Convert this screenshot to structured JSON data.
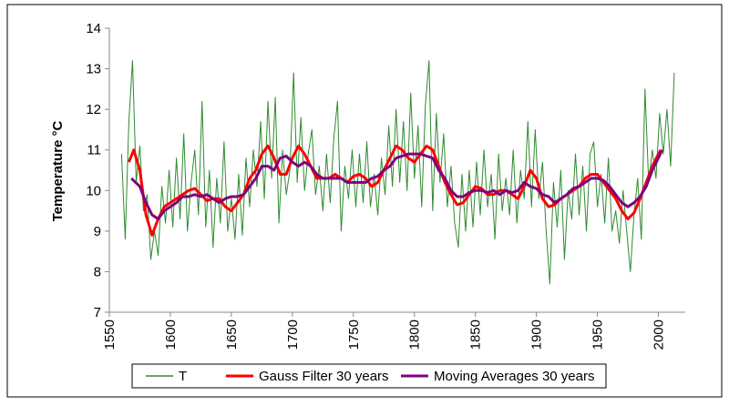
{
  "chart_data": {
    "type": "line",
    "ylabel": "Temperature °C",
    "xlim": [
      1550,
      2022
    ],
    "xticks": [
      1550,
      1600,
      1650,
      1700,
      1750,
      1800,
      1850,
      1900,
      1950,
      2000
    ],
    "ylim": [
      7,
      14
    ],
    "yticks": [
      7,
      8,
      9,
      10,
      11,
      12,
      13,
      14
    ],
    "grid": false,
    "legend": "bottom",
    "series": [
      {
        "name": "T",
        "color": "#2e8b2e",
        "width": 1,
        "x": [
          1560,
          1563,
          1566,
          1569,
          1572,
          1575,
          1578,
          1581,
          1584,
          1587,
          1590,
          1593,
          1596,
          1599,
          1602,
          1605,
          1608,
          1611,
          1614,
          1617,
          1620,
          1623,
          1626,
          1629,
          1632,
          1635,
          1638,
          1641,
          1644,
          1647,
          1650,
          1653,
          1656,
          1659,
          1662,
          1665,
          1668,
          1671,
          1674,
          1677,
          1680,
          1683,
          1686,
          1689,
          1692,
          1695,
          1698,
          1701,
          1704,
          1707,
          1710,
          1713,
          1716,
          1719,
          1722,
          1725,
          1728,
          1731,
          1734,
          1737,
          1740,
          1743,
          1746,
          1749,
          1752,
          1755,
          1758,
          1761,
          1764,
          1767,
          1770,
          1773,
          1776,
          1779,
          1782,
          1785,
          1788,
          1791,
          1794,
          1797,
          1800,
          1803,
          1806,
          1809,
          1812,
          1815,
          1818,
          1821,
          1824,
          1827,
          1830,
          1833,
          1836,
          1839,
          1842,
          1845,
          1848,
          1851,
          1854,
          1857,
          1860,
          1863,
          1866,
          1869,
          1872,
          1875,
          1878,
          1881,
          1884,
          1887,
          1890,
          1893,
          1896,
          1899,
          1902,
          1905,
          1908,
          1911,
          1914,
          1917,
          1920,
          1923,
          1926,
          1929,
          1932,
          1935,
          1938,
          1941,
          1944,
          1947,
          1950,
          1953,
          1956,
          1959,
          1962,
          1965,
          1968,
          1971,
          1974,
          1977,
          1980,
          1983,
          1986,
          1989,
          1992,
          1995,
          1998,
          2001,
          2004,
          2007,
          2010,
          2013
        ],
        "values": [
          10.9,
          8.8,
          11.7,
          13.2,
          10.2,
          11.1,
          9.5,
          9.9,
          8.3,
          9.0,
          8.4,
          10.1,
          9.2,
          10.5,
          9.1,
          10.8,
          9.3,
          11.4,
          9.0,
          10.2,
          11.0,
          9.4,
          12.2,
          9.1,
          10.5,
          8.6,
          10.3,
          9.2,
          11.2,
          9.0,
          9.8,
          8.8,
          10.4,
          8.9,
          10.8,
          9.6,
          11.0,
          10.1,
          11.7,
          9.8,
          12.2,
          10.3,
          12.3,
          9.2,
          11.0,
          9.9,
          10.5,
          12.9,
          10.2,
          11.8,
          10.0,
          10.9,
          11.5,
          9.9,
          10.6,
          9.5,
          10.9,
          9.7,
          11.3,
          12.2,
          9.0,
          10.6,
          9.8,
          11.0,
          9.6,
          10.9,
          9.7,
          11.2,
          9.6,
          10.4,
          9.4,
          10.8,
          9.9,
          11.6,
          10.1,
          12.0,
          10.2,
          11.7,
          10.0,
          12.4,
          10.3,
          11.6,
          9.6,
          12.1,
          13.2,
          9.5,
          11.9,
          10.2,
          11.4,
          9.6,
          10.6,
          9.2,
          8.6,
          10.4,
          9.0,
          10.5,
          9.1,
          10.7,
          9.4,
          11.0,
          9.6,
          10.4,
          8.8,
          10.9,
          9.5,
          10.3,
          9.4,
          11.0,
          9.2,
          10.5,
          9.8,
          11.7,
          9.6,
          11.5,
          9.8,
          10.7,
          9.0,
          7.7,
          10.2,
          9.1,
          10.5,
          8.3,
          10.0,
          9.3,
          10.9,
          9.4,
          10.6,
          9.0,
          10.9,
          11.2,
          9.6,
          10.4,
          9.2,
          10.8,
          9.0,
          9.5,
          8.7,
          10.0,
          9.0,
          8.0,
          9.4,
          10.3,
          8.8,
          12.5,
          10.2,
          11.0,
          10.3,
          11.9,
          10.9,
          12.0,
          10.6,
          12.9
        ]
      },
      {
        "name": "Gauss Filter 30 years",
        "color": "#ff0000",
        "width": 3,
        "x": [
          1566,
          1570,
          1575,
          1580,
          1585,
          1590,
          1595,
          1600,
          1605,
          1610,
          1615,
          1620,
          1625,
          1630,
          1635,
          1640,
          1645,
          1650,
          1655,
          1660,
          1665,
          1670,
          1675,
          1680,
          1685,
          1690,
          1695,
          1700,
          1705,
          1710,
          1715,
          1720,
          1725,
          1730,
          1735,
          1740,
          1745,
          1750,
          1755,
          1760,
          1765,
          1770,
          1775,
          1780,
          1785,
          1790,
          1795,
          1800,
          1805,
          1810,
          1815,
          1820,
          1825,
          1830,
          1835,
          1840,
          1845,
          1850,
          1855,
          1860,
          1865,
          1870,
          1875,
          1880,
          1885,
          1890,
          1895,
          1900,
          1905,
          1910,
          1915,
          1920,
          1925,
          1930,
          1935,
          1940,
          1945,
          1950,
          1955,
          1960,
          1965,
          1970,
          1975,
          1980,
          1985,
          1990,
          1995,
          2000,
          2002
        ],
        "values": [
          10.7,
          11.0,
          10.5,
          9.4,
          8.9,
          9.3,
          9.6,
          9.7,
          9.8,
          9.9,
          10.0,
          10.05,
          9.9,
          9.75,
          9.8,
          9.8,
          9.6,
          9.5,
          9.7,
          9.9,
          10.3,
          10.5,
          10.9,
          11.1,
          10.8,
          10.4,
          10.4,
          10.8,
          11.1,
          10.9,
          10.6,
          10.3,
          10.3,
          10.3,
          10.4,
          10.3,
          10.2,
          10.35,
          10.4,
          10.3,
          10.1,
          10.2,
          10.5,
          10.8,
          11.1,
          11.0,
          10.8,
          10.7,
          10.9,
          11.1,
          11.0,
          10.6,
          10.2,
          9.9,
          9.65,
          9.7,
          9.9,
          10.1,
          10.05,
          9.9,
          9.9,
          10.0,
          10.0,
          9.9,
          9.8,
          10.1,
          10.5,
          10.3,
          9.8,
          9.6,
          9.65,
          9.8,
          9.9,
          10.0,
          10.1,
          10.3,
          10.4,
          10.4,
          10.2,
          10.0,
          9.8,
          9.5,
          9.3,
          9.45,
          9.8,
          10.2,
          10.6,
          10.9,
          11.0
        ]
      },
      {
        "name": "Moving Averages 30 years",
        "color": "#800080",
        "width": 3,
        "x": [
          1568,
          1575,
          1580,
          1585,
          1590,
          1595,
          1600,
          1605,
          1610,
          1615,
          1620,
          1625,
          1630,
          1635,
          1640,
          1645,
          1650,
          1655,
          1660,
          1665,
          1670,
          1675,
          1680,
          1685,
          1690,
          1695,
          1700,
          1705,
          1710,
          1715,
          1720,
          1725,
          1730,
          1735,
          1740,
          1745,
          1750,
          1755,
          1760,
          1765,
          1770,
          1775,
          1780,
          1785,
          1790,
          1795,
          1800,
          1805,
          1810,
          1815,
          1820,
          1825,
          1830,
          1835,
          1840,
          1845,
          1850,
          1855,
          1860,
          1865,
          1870,
          1875,
          1880,
          1885,
          1890,
          1895,
          1900,
          1905,
          1910,
          1915,
          1920,
          1925,
          1930,
          1935,
          1940,
          1945,
          1950,
          1955,
          1960,
          1965,
          1970,
          1975,
          1980,
          1985,
          1990,
          1995,
          2000,
          2003
        ],
        "values": [
          10.3,
          10.1,
          9.7,
          9.4,
          9.3,
          9.5,
          9.6,
          9.7,
          9.85,
          9.85,
          9.9,
          9.85,
          9.9,
          9.8,
          9.7,
          9.8,
          9.85,
          9.85,
          9.9,
          10.1,
          10.3,
          10.6,
          10.6,
          10.5,
          10.8,
          10.85,
          10.7,
          10.6,
          10.7,
          10.6,
          10.4,
          10.3,
          10.3,
          10.3,
          10.3,
          10.2,
          10.2,
          10.2,
          10.2,
          10.3,
          10.35,
          10.5,
          10.6,
          10.8,
          10.85,
          10.9,
          10.9,
          10.9,
          10.85,
          10.8,
          10.5,
          10.3,
          10.0,
          9.85,
          9.85,
          9.95,
          10.0,
          10.0,
          9.95,
          10.0,
          9.9,
          10.0,
          9.95,
          10.0,
          10.2,
          10.1,
          10.05,
          9.9,
          9.85,
          9.7,
          9.8,
          9.9,
          10.05,
          10.1,
          10.2,
          10.3,
          10.3,
          10.25,
          10.1,
          9.9,
          9.7,
          9.6,
          9.7,
          9.85,
          10.1,
          10.5,
          10.8,
          11.0
        ]
      }
    ]
  }
}
